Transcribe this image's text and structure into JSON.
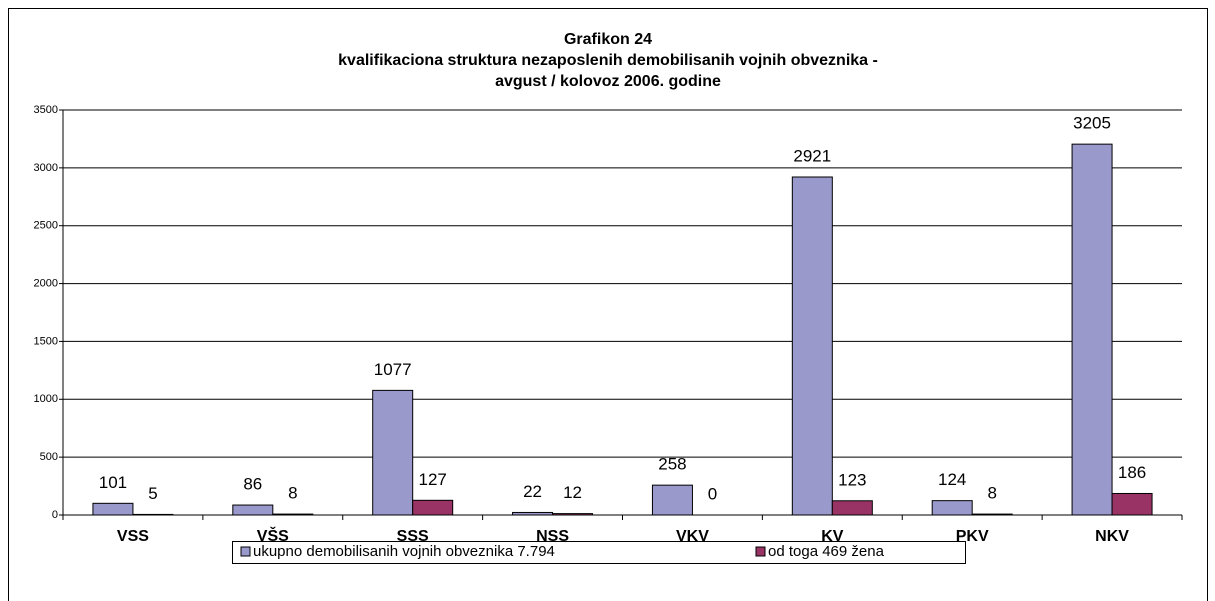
{
  "chart_data": {
    "type": "bar",
    "title": [
      "Grafikon 24",
      "kvalifikaciona struktura nezaposlenih demobilisanih vojnih obveznika -",
      "avgust / kolovoz 2006. godine"
    ],
    "categories": [
      "VSS",
      "VŠS",
      "SSS",
      "NSS",
      "VKV",
      "KV",
      "PKV",
      "NKV"
    ],
    "series": [
      {
        "name": "ukupno demobilisanih vojnih obveznika 7.794",
        "color": "#9999cc",
        "values": [
          101,
          86,
          1077,
          22,
          258,
          2921,
          124,
          3205
        ]
      },
      {
        "name": "od toga 469 žena",
        "color": "#993366",
        "values": [
          5,
          8,
          127,
          12,
          0,
          123,
          8,
          186
        ]
      }
    ],
    "ylim": [
      0,
      3500
    ],
    "yticks": [
      0,
      500,
      1000,
      1500,
      2000,
      2500,
      3000,
      3500
    ],
    "grid": true,
    "legend": "bottom"
  }
}
